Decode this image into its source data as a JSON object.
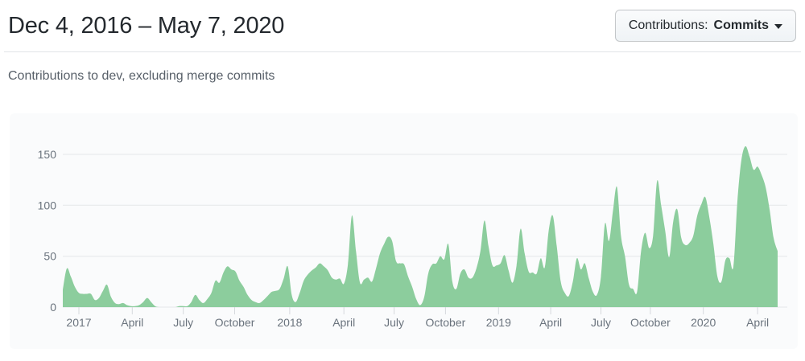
{
  "header": {
    "title": "Dec 4, 2016 – May 7, 2020",
    "filter_button": {
      "prefix": "Contributions:",
      "selected": "Commits"
    }
  },
  "subtitle": "Contributions to dev, excluding merge commits",
  "chart_data": {
    "type": "area",
    "title": "Contributions to dev, excluding merge commits",
    "x_unit": "week",
    "x_range_start": "Dec 4, 2016",
    "x_range_end": "May 7, 2020",
    "ylim": [
      0,
      150
    ],
    "y_ticks": [
      0,
      50,
      100,
      150
    ],
    "x_ticks": [
      {
        "label": "2017",
        "week": 4
      },
      {
        "label": "April",
        "week": 17.3
      },
      {
        "label": "July",
        "week": 30
      },
      {
        "label": "October",
        "week": 42.8
      },
      {
        "label": "2018",
        "week": 56.5
      },
      {
        "label": "April",
        "week": 70
      },
      {
        "label": "July",
        "week": 82.5
      },
      {
        "label": "October",
        "week": 95.3
      },
      {
        "label": "2019",
        "week": 108.5
      },
      {
        "label": "April",
        "week": 121.5
      },
      {
        "label": "July",
        "week": 134
      },
      {
        "label": "October",
        "week": 146.3
      },
      {
        "label": "2020",
        "week": 159.5
      },
      {
        "label": "April",
        "week": 173
      }
    ],
    "values": [
      17,
      38,
      30,
      20,
      14,
      13,
      13,
      13,
      7,
      9,
      16,
      22,
      10,
      4,
      3,
      4,
      2,
      1,
      1,
      2,
      5,
      9,
      5,
      1,
      0,
      0,
      0,
      0,
      0,
      1,
      1,
      1,
      5,
      12,
      7,
      4,
      8,
      14,
      26,
      24,
      34,
      40,
      37,
      35,
      26,
      20,
      12,
      7,
      5,
      4,
      7,
      11,
      15,
      16,
      18,
      28,
      40,
      12,
      5,
      14,
      26,
      32,
      36,
      39,
      43,
      40,
      36,
      29,
      27,
      28,
      23,
      42,
      90,
      55,
      24,
      27,
      29,
      25,
      38,
      53,
      62,
      69,
      65,
      45,
      43,
      42,
      30,
      20,
      8,
      2,
      10,
      33,
      42,
      43,
      50,
      47,
      62,
      25,
      18,
      33,
      37,
      29,
      29,
      38,
      55,
      85,
      60,
      41,
      41,
      43,
      51,
      36,
      24,
      41,
      77,
      53,
      35,
      34,
      33,
      48,
      39,
      75,
      90,
      60,
      25,
      14,
      11,
      25,
      48,
      37,
      43,
      28,
      15,
      12,
      30,
      82,
      65,
      95,
      118,
      70,
      50,
      22,
      18,
      15,
      55,
      73,
      58,
      70,
      124,
      100,
      75,
      49,
      84,
      96,
      68,
      61,
      63,
      70,
      90,
      101,
      108,
      88,
      62,
      30,
      25,
      46,
      48,
      40,
      105,
      145,
      158,
      148,
      135,
      138,
      130,
      118,
      96,
      68,
      55
    ],
    "colors": {
      "area_fill": "#8ccd9d",
      "grid_line": "#e4e7ea",
      "tick_mark": "#d6d9dd",
      "axis_text": "#6a737d",
      "panel_background": "#fafbfc",
      "title_text": "#24292e",
      "subtitle_text": "#586069"
    },
    "legend": null,
    "grid": true
  }
}
